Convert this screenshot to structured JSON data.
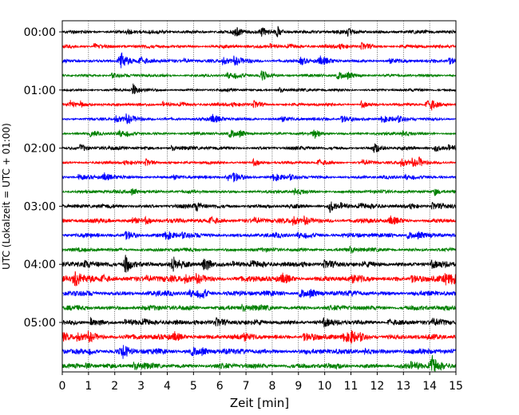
{
  "chart_data": {
    "type": "line",
    "subtype": "helicorder",
    "xlabel": "Zeit  [min]",
    "ylabel": "UTC (Lokalzeit = UTC + 01:00)",
    "xlim": [
      0,
      15
    ],
    "x_ticks": [
      "0",
      "1",
      "2",
      "3",
      "4",
      "5",
      "6",
      "7",
      "8",
      "9",
      "10",
      "11",
      "12",
      "13",
      "14",
      "15"
    ],
    "y_ticks": [
      {
        "label": "00:00",
        "row": 0
      },
      {
        "label": "01:00",
        "row": 4
      },
      {
        "label": "02:00",
        "row": 8
      },
      {
        "label": "03:00",
        "row": 12
      },
      {
        "label": "04:00",
        "row": 16
      },
      {
        "label": "05:00",
        "row": 20
      }
    ],
    "rows_per_hour": 4,
    "minutes_per_row": 15,
    "row_count": 24,
    "grid": "vertical dotted lines at each minute",
    "colors": [
      "#000000",
      "#ff0000",
      "#0000ff",
      "#008000"
    ],
    "events": [
      {
        "row": 0,
        "minute": 6.6,
        "amp": 0.35
      },
      {
        "row": 0,
        "minute": 7.6,
        "amp": 0.3
      },
      {
        "row": 0,
        "minute": 8.2,
        "amp": 0.4
      },
      {
        "row": 2,
        "minute": 2.2,
        "amp": 0.9
      },
      {
        "row": 2,
        "minute": 9.1,
        "amp": 0.35
      },
      {
        "row": 3,
        "minute": 7.6,
        "amp": 0.45
      },
      {
        "row": 4,
        "minute": 2.7,
        "amp": 0.45
      },
      {
        "row": 5,
        "minute": 0.3,
        "amp": 0.3
      },
      {
        "row": 5,
        "minute": 14.0,
        "amp": 0.45
      },
      {
        "row": 7,
        "minute": 9.6,
        "amp": 0.35
      },
      {
        "row": 8,
        "minute": 11.9,
        "amp": 0.35
      },
      {
        "row": 8,
        "minute": 14.2,
        "amp": 0.3
      },
      {
        "row": 9,
        "minute": 13.6,
        "amp": 0.3
      },
      {
        "row": 10,
        "minute": 6.3,
        "amp": 0.35
      },
      {
        "row": 11,
        "minute": 14.2,
        "amp": 0.3
      },
      {
        "row": 12,
        "minute": 5.1,
        "amp": 0.35
      },
      {
        "row": 12,
        "minute": 10.2,
        "amp": 0.4
      },
      {
        "row": 16,
        "minute": 2.4,
        "amp": 0.85
      },
      {
        "row": 16,
        "minute": 4.2,
        "amp": 0.55
      },
      {
        "row": 16,
        "minute": 5.4,
        "amp": 0.75
      },
      {
        "row": 17,
        "minute": 0.5,
        "amp": 0.45
      },
      {
        "row": 17,
        "minute": 14.6,
        "amp": 0.4
      },
      {
        "row": 18,
        "minute": 5.3,
        "amp": 0.35
      },
      {
        "row": 21,
        "minute": 11.0,
        "amp": 0.35
      },
      {
        "row": 22,
        "minute": 2.3,
        "amp": 0.55
      },
      {
        "row": 23,
        "minute": 14.1,
        "amp": 0.7
      }
    ]
  }
}
